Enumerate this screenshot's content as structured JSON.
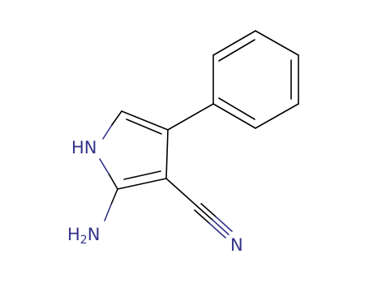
{
  "atoms": {
    "ring_nh": "HN",
    "amine": {
      "h": "H",
      "sub": "2",
      "n": "N"
    },
    "nitrile_n": "N"
  }
}
